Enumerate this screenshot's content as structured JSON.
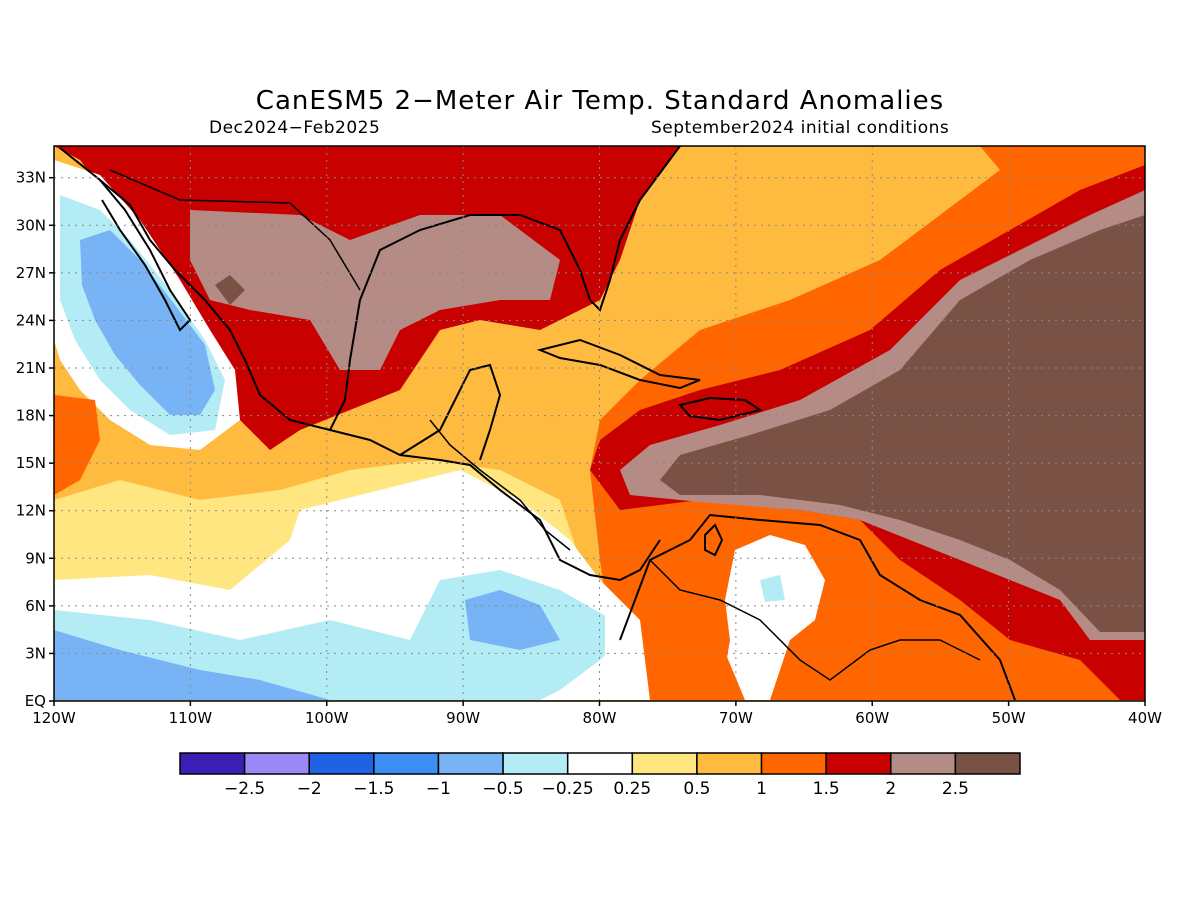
{
  "title": "CanESM5 2−Meter Air Temp. Standard Anomalies",
  "subtitle_left": "Dec2024−Feb2025",
  "subtitle_right": "September2024 initial conditions",
  "map": {
    "lon_range": [
      -120,
      -40
    ],
    "lat_range": [
      0,
      35
    ],
    "lon_ticks": [
      "120W",
      "110W",
      "100W",
      "90W",
      "80W",
      "70W",
      "60W",
      "50W",
      "40W"
    ],
    "lat_ticks": [
      "EQ",
      "3N",
      "6N",
      "9N",
      "12N",
      "15N",
      "18N",
      "21N",
      "24N",
      "27N",
      "30N",
      "33N"
    ],
    "grid": true
  },
  "colorbar": {
    "colors": [
      "#3b1fb5",
      "#9b87f5",
      "#1e63e6",
      "#3b8ff2",
      "#78b4f5",
      "#b3ecf5",
      "#ffffff",
      "#ffe680",
      "#ffba40",
      "#ff6600",
      "#c80000",
      "#b58c85",
      "#7a5245"
    ],
    "labels": [
      "−2.5",
      "−2",
      "−1.5",
      "−1",
      "−0.5",
      "−0.25",
      "0.25",
      "0.5",
      "1",
      "1.5",
      "2",
      "2.5"
    ]
  }
}
